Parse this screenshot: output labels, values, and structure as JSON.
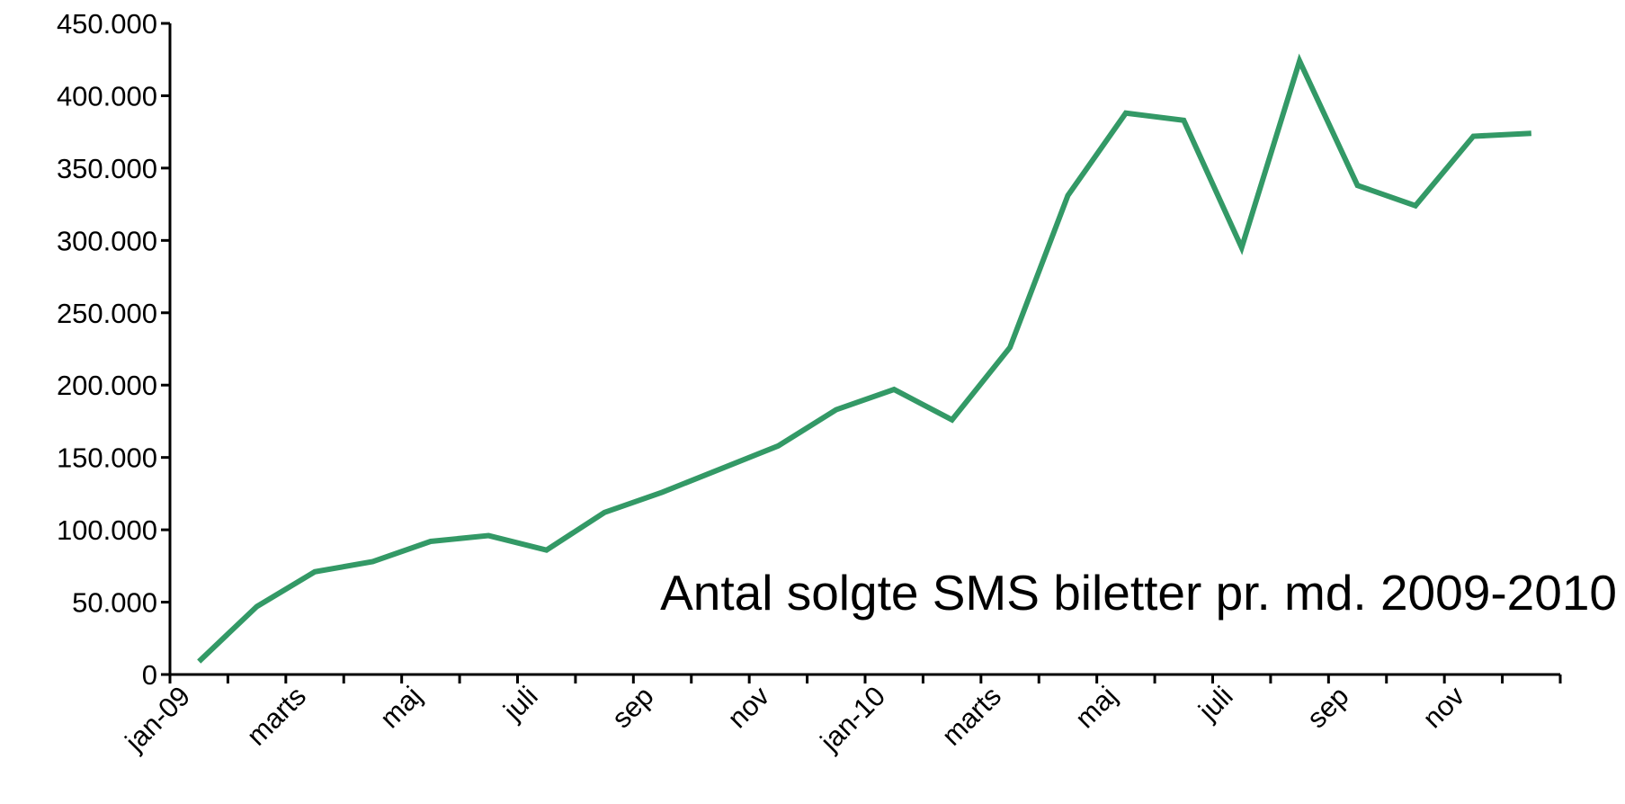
{
  "chart_data": {
    "type": "line",
    "title": "Antal solgte SMS biletter pr. md. 2009-2010",
    "categories": [
      "jan-09",
      null,
      "marts",
      null,
      "maj",
      null,
      "juli",
      null,
      "sep",
      null,
      "nov",
      null,
      "jan-10",
      null,
      "marts",
      null,
      "maj",
      null,
      "juli",
      null,
      "sep",
      null,
      "nov",
      null
    ],
    "series": [
      {
        "name": "Antal solgte SMS biletter",
        "color": "#339966",
        "values": [
          9000,
          47000,
          71000,
          78000,
          92000,
          96000,
          86000,
          112000,
          126000,
          142000,
          158000,
          183000,
          197000,
          176000,
          226000,
          331000,
          388000,
          383000,
          295000,
          424000,
          338000,
          324000,
          372000,
          374000
        ]
      }
    ],
    "ylim": [
      0,
      450000
    ],
    "yticks": [
      0,
      {
        "value": 50000,
        "label": "50.000"
      },
      {
        "value": 100000,
        "label": "100.000"
      },
      {
        "value": 150000,
        "label": "150.000"
      },
      {
        "value": 200000,
        "label": "200.000"
      },
      {
        "value": 250000,
        "label": "250.000"
      },
      {
        "value": 300000,
        "label": "300.000"
      },
      {
        "value": 350000,
        "label": "350.000"
      },
      {
        "value": 400000,
        "label": "400.000"
      },
      {
        "value": 450000,
        "label": "450.000"
      }
    ],
    "grid": false
  }
}
